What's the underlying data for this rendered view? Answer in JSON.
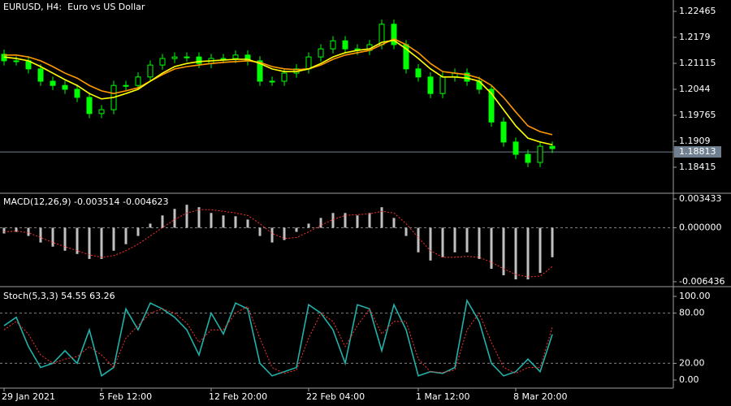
{
  "chart_data": [
    {
      "type": "candlestick",
      "title": "EURUSD, H4:  Euro vs US Dollar",
      "categories": [
        "29 Jan 2021",
        null,
        null,
        null,
        null,
        null,
        null,
        null,
        "5 Feb 12:00",
        null,
        null,
        null,
        null,
        null,
        null,
        null,
        null,
        "12 Feb 20:00",
        null,
        null,
        null,
        null,
        null,
        null,
        null,
        "22 Feb 04:00",
        null,
        null,
        null,
        null,
        null,
        null,
        null,
        null,
        "1 Mar 12:00",
        null,
        null,
        null,
        null,
        null,
        null,
        null,
        "8 Mar 20:00",
        null,
        null,
        null
      ],
      "open": [
        1.2135,
        1.2118,
        1.2118,
        1.2097,
        1.2065,
        1.2054,
        1.2044,
        1.2023,
        1.1981,
        1.1991,
        1.2054,
        1.2054,
        1.2076,
        1.2107,
        1.2124,
        1.2128,
        1.2128,
        1.2111,
        1.2124,
        1.2124,
        1.2133,
        1.2118,
        1.2065,
        1.2065,
        1.2086,
        1.2097,
        1.2128,
        1.2149,
        1.217,
        1.2149,
        1.2145,
        1.216,
        1.2213,
        1.216,
        1.2097,
        1.2076,
        1.2033,
        1.2076,
        1.2086,
        1.2065,
        1.2044,
        1.1959,
        1.1907,
        1.1875,
        1.1854,
        1.1896
      ],
      "high": [
        1.2147,
        1.213,
        1.213,
        1.2109,
        1.2077,
        1.2066,
        1.2056,
        1.2035,
        1.2003,
        1.2066,
        1.2066,
        1.2088,
        1.2119,
        1.2136,
        1.214,
        1.214,
        1.214,
        1.2136,
        1.2136,
        1.2145,
        1.2145,
        1.213,
        1.2077,
        1.2098,
        1.2109,
        1.214,
        1.2161,
        1.2182,
        1.2182,
        1.2161,
        1.2172,
        1.2225,
        1.2225,
        1.2172,
        1.2109,
        1.2088,
        1.2088,
        1.2098,
        1.2098,
        1.2077,
        1.2056,
        1.1971,
        1.1919,
        1.1887,
        1.1908,
        1.1908
      ],
      "low": [
        1.2106,
        1.2106,
        1.2085,
        1.2053,
        1.2042,
        1.2032,
        1.2011,
        1.1969,
        1.1969,
        1.1979,
        1.2042,
        1.2042,
        1.2064,
        1.2095,
        1.2112,
        1.2116,
        1.2099,
        1.2099,
        1.2112,
        1.2112,
        1.2106,
        1.2053,
        1.2053,
        1.2053,
        1.2074,
        1.2085,
        1.2116,
        1.2137,
        1.2137,
        1.2133,
        1.2133,
        1.2148,
        1.2148,
        1.2085,
        1.2064,
        1.2021,
        1.2021,
        1.2064,
        1.2053,
        1.2032,
        1.1947,
        1.1895,
        1.1863,
        1.1842,
        1.1842,
        1.1878
      ],
      "close": [
        1.2118,
        1.2118,
        1.2097,
        1.2065,
        1.2054,
        1.2044,
        1.2023,
        1.1981,
        1.1991,
        1.2054,
        1.2054,
        1.2076,
        1.2107,
        1.2124,
        1.2128,
        1.2128,
        1.2111,
        1.2124,
        1.2124,
        1.2133,
        1.2118,
        1.2065,
        1.2065,
        1.2086,
        1.2097,
        1.2128,
        1.2149,
        1.217,
        1.2149,
        1.2145,
        1.216,
        1.2213,
        1.216,
        1.2097,
        1.2076,
        1.2033,
        1.2076,
        1.2086,
        1.2065,
        1.2044,
        1.1959,
        1.1907,
        1.1875,
        1.1854,
        1.1896,
        1.189
      ],
      "color": "#00ff00",
      "series": [
        {
          "color": "#ff9900",
          "values": [
            1.2133,
            1.2133,
            1.2128,
            1.2118,
            1.2103,
            1.2086,
            1.2073,
            1.2054,
            1.204,
            1.2033,
            1.204,
            1.2048,
            1.2065,
            1.2082,
            1.2097,
            1.2103,
            1.2107,
            1.2111,
            1.2114,
            1.2116,
            1.2118,
            1.2114,
            1.2103,
            1.2097,
            1.2095,
            1.2097,
            1.2107,
            1.2122,
            1.2133,
            1.2139,
            1.2145,
            1.216,
            1.2175,
            1.216,
            1.2139,
            1.2111,
            1.209,
            1.2086,
            1.2082,
            1.2073,
            1.2054,
            1.2023,
            1.1985,
            1.1949,
            1.1934,
            1.1926
          ]
        },
        {
          "color": "#ffff00",
          "values": [
            1.2128,
            1.2124,
            1.2118,
            1.2103,
            1.2086,
            1.2069,
            1.2054,
            1.2033,
            1.2019,
            1.2023,
            1.2033,
            1.2044,
            1.2065,
            1.2086,
            1.2103,
            1.2111,
            1.2116,
            1.2118,
            1.212,
            1.2122,
            1.2122,
            1.2111,
            1.2097,
            1.209,
            1.209,
            1.2097,
            1.2111,
            1.2128,
            1.2139,
            1.2145,
            1.2149,
            1.2166,
            1.2171,
            1.2149,
            1.2124,
            1.2097,
            1.2076,
            1.2076,
            1.2073,
            1.2065,
            1.2033,
            1.1991,
            1.1949,
            1.1917,
            1.1907,
            1.19
          ]
        }
      ],
      "current_price": 1.18813,
      "ylim": [
        1.1776,
        1.2276
      ],
      "yticks": [
        1.22465,
        1.2179,
        1.21115,
        1.2044,
        1.19765,
        1.1909,
        1.18415
      ]
    },
    {
      "type": "bar",
      "title": "MACD(12,26,9) -0.003514 -0.004623",
      "series": [
        {
          "color": "#c0c0c0",
          "style": "histogram",
          "values": [
            -0.00068,
            -0.00049,
            -0.00098,
            -0.00176,
            -0.00225,
            -0.00274,
            -0.00313,
            -0.00372,
            -0.00372,
            -0.00274,
            -0.00196,
            -0.00098,
            0.00049,
            0.00147,
            0.00225,
            0.00274,
            0.00245,
            0.00176,
            0.00147,
            0.00137,
            0.00098,
            -0.00098,
            -0.00176,
            -0.00147,
            -0.00049,
            0.00049,
            0.00117,
            0.00176,
            0.00176,
            0.00147,
            0.00176,
            0.00245,
            0.00117,
            -0.00098,
            -0.00293,
            -0.00391,
            -0.00352,
            -0.00293,
            -0.00293,
            -0.00372,
            -0.00489,
            -0.00567,
            -0.00616,
            -0.00616,
            -0.00538,
            -0.003514
          ]
        },
        {
          "color": "#ff3030",
          "style": "dotted",
          "values": [
            -0.00049,
            -0.00039,
            -0.00059,
            -0.00117,
            -0.00176,
            -0.00225,
            -0.00274,
            -0.00323,
            -0.00352,
            -0.00333,
            -0.00274,
            -0.00196,
            -0.00098,
            0,
            0.00098,
            0.00176,
            0.00215,
            0.00215,
            0.00196,
            0.00176,
            0.00147,
            0.00049,
            -0.00068,
            -0.00127,
            -0.00117,
            -0.00049,
            0.00029,
            0.00098,
            0.00147,
            0.00156,
            0.00166,
            0.00196,
            0.00176,
            0.00049,
            -0.00117,
            -0.00274,
            -0.00352,
            -0.00352,
            -0.00342,
            -0.00352,
            -0.00411,
            -0.00489,
            -0.00557,
            -0.00587,
            -0.00577,
            -0.004623
          ]
        }
      ],
      "levels": [
        0
      ],
      "ylim": [
        -0.00683,
        0.00392
      ],
      "yticks": [
        0.003433,
        {
          "value": 0,
          "label": "0.000000"
        },
        -0.006436
      ]
    },
    {
      "type": "line",
      "title": "Stoch(5,3,3) 54.55 63.26",
      "series": [
        {
          "color": "#20b2aa",
          "style": "solid",
          "values": [
            65,
            75,
            40,
            15,
            20,
            35,
            20,
            60,
            5,
            15,
            85,
            60,
            92,
            85,
            75,
            60,
            30,
            80,
            55,
            92,
            85,
            20,
            5,
            10,
            15,
            90,
            80,
            60,
            20,
            90,
            85,
            35,
            90,
            60,
            5,
            10,
            8,
            15,
            95,
            70,
            20,
            5,
            10,
            25,
            10,
            54.55
          ]
        },
        {
          "color": "#ff3030",
          "style": "dotted",
          "values": [
            60,
            70,
            55,
            30,
            20,
            25,
            28,
            40,
            30,
            15,
            50,
            65,
            80,
            85,
            80,
            68,
            45,
            60,
            60,
            80,
            88,
            50,
            15,
            8,
            12,
            50,
            80,
            70,
            40,
            65,
            85,
            55,
            70,
            70,
            25,
            10,
            9,
            12,
            60,
            80,
            45,
            15,
            8,
            15,
            15,
            63.26
          ]
        }
      ],
      "levels": [
        80,
        20
      ],
      "ylim": [
        -8.7,
        108.7
      ],
      "yticks": [
        {
          "value": 100,
          "label": "100.00"
        },
        {
          "value": 80,
          "label": "80.00"
        },
        {
          "value": 20,
          "label": "20.00"
        },
        {
          "value": 0,
          "label": "0.00"
        }
      ]
    }
  ]
}
